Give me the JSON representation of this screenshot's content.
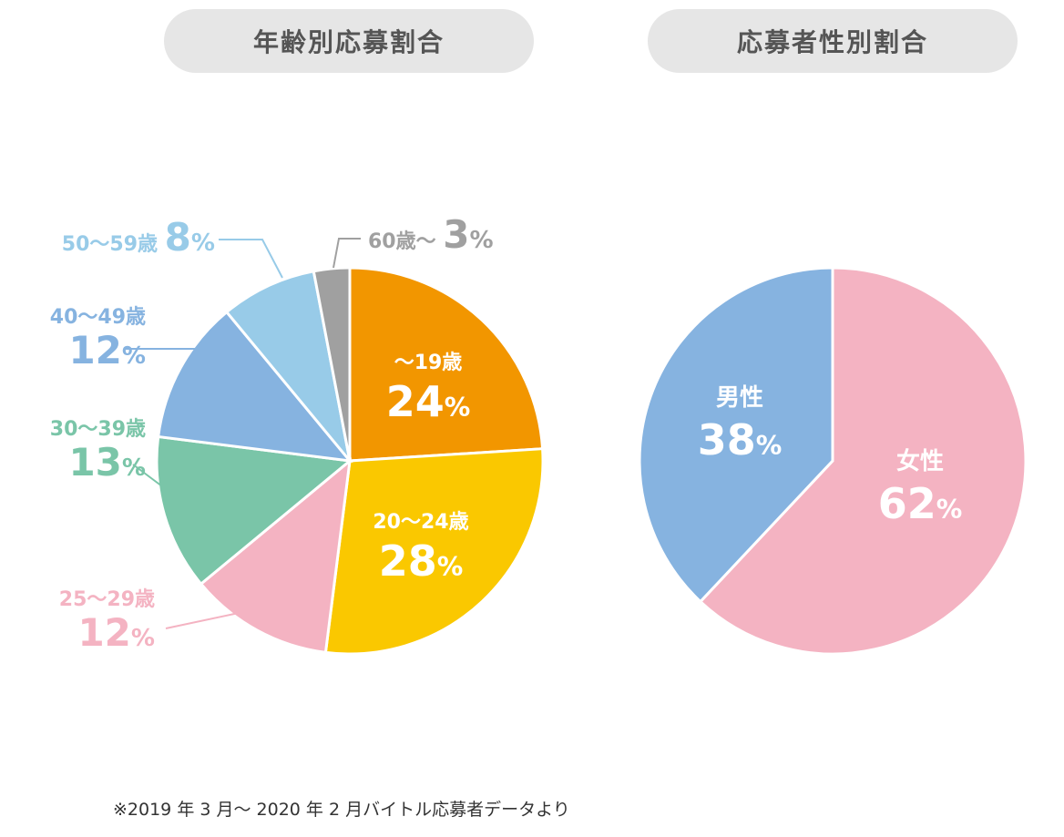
{
  "chart_data": [
    {
      "type": "pie",
      "title": "年齢別応募割合",
      "slices": [
        {
          "label": "〜19歳",
          "value": 24,
          "value_text": "24",
          "color": "#f29600",
          "placement": "inside"
        },
        {
          "label": "20〜24歳",
          "value": 28,
          "value_text": "28",
          "color": "#fac800",
          "placement": "inside"
        },
        {
          "label": "25〜29歳",
          "value": 12,
          "value_text": "12",
          "color": "#f4b3c2",
          "placement": "outside-left"
        },
        {
          "label": "30〜39歳",
          "value": 13,
          "value_text": "13",
          "color": "#7ac5a8",
          "placement": "outside-left"
        },
        {
          "label": "40〜49歳",
          "value": 12,
          "value_text": "12",
          "color": "#86b3e0",
          "placement": "outside-left"
        },
        {
          "label": "50〜59歳",
          "value": 8,
          "value_text": "8",
          "color": "#98cbe8",
          "placement": "outside-top-left"
        },
        {
          "label": "60歳〜",
          "value": 3,
          "value_text": "3",
          "color": "#a0a0a0",
          "placement": "outside-top"
        }
      ],
      "unit": "%"
    },
    {
      "type": "pie",
      "title": "応募者性別割合",
      "slices": [
        {
          "label": "女性",
          "value": 62,
          "value_text": "62",
          "color": "#f4b3c2",
          "placement": "inside"
        },
        {
          "label": "男性",
          "value": 38,
          "value_text": "38",
          "color": "#86b3e0",
          "placement": "inside"
        }
      ],
      "unit": "%"
    }
  ],
  "footnote": "※2019 年 3 月〜 2020 年 2 月バイトル応募者データより"
}
